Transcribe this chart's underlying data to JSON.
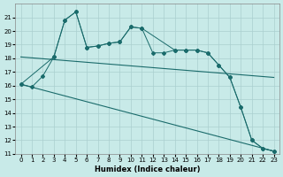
{
  "xlabel": "Humidex (Indice chaleur)",
  "background_color": "#c8eae8",
  "grid_color": "#aacfcf",
  "line_color": "#1a6b6b",
  "x_values": [
    0,
    1,
    2,
    3,
    4,
    5,
    6,
    7,
    8,
    9,
    10,
    11,
    12,
    13,
    14,
    15,
    16,
    17,
    18,
    19,
    20,
    21,
    22,
    23
  ],
  "series_a": [
    16.1,
    15.9,
    16.7,
    18.1,
    20.8,
    21.4,
    18.8,
    18.9,
    19.1,
    19.2,
    20.3,
    20.2,
    18.4,
    18.4,
    18.6,
    18.6,
    18.6,
    18.4,
    17.5,
    16.6,
    14.4,
    12.0,
    11.4,
    11.2
  ],
  "series_b_x": [
    0,
    3,
    4,
    5,
    6,
    7,
    8,
    9,
    10,
    11,
    14,
    15,
    16,
    17,
    18,
    19,
    20,
    21,
    22,
    23
  ],
  "series_b": [
    16.1,
    18.1,
    20.8,
    21.4,
    18.8,
    18.9,
    19.1,
    19.2,
    20.3,
    20.2,
    18.6,
    18.6,
    18.6,
    18.4,
    17.5,
    16.6,
    14.4,
    12.0,
    11.4,
    11.2
  ],
  "trend1_x": [
    0,
    23
  ],
  "trend1_y": [
    18.1,
    16.6
  ],
  "trend2_x": [
    0,
    23
  ],
  "trend2_y": [
    16.1,
    11.2
  ],
  "ylim": [
    11,
    22
  ],
  "xlim_min": -0.5,
  "xlim_max": 23.5,
  "yticks": [
    11,
    12,
    13,
    14,
    15,
    16,
    17,
    18,
    19,
    20,
    21
  ],
  "xticks": [
    0,
    1,
    2,
    3,
    4,
    5,
    6,
    7,
    8,
    9,
    10,
    11,
    12,
    13,
    14,
    15,
    16,
    17,
    18,
    19,
    20,
    21,
    22,
    23
  ]
}
